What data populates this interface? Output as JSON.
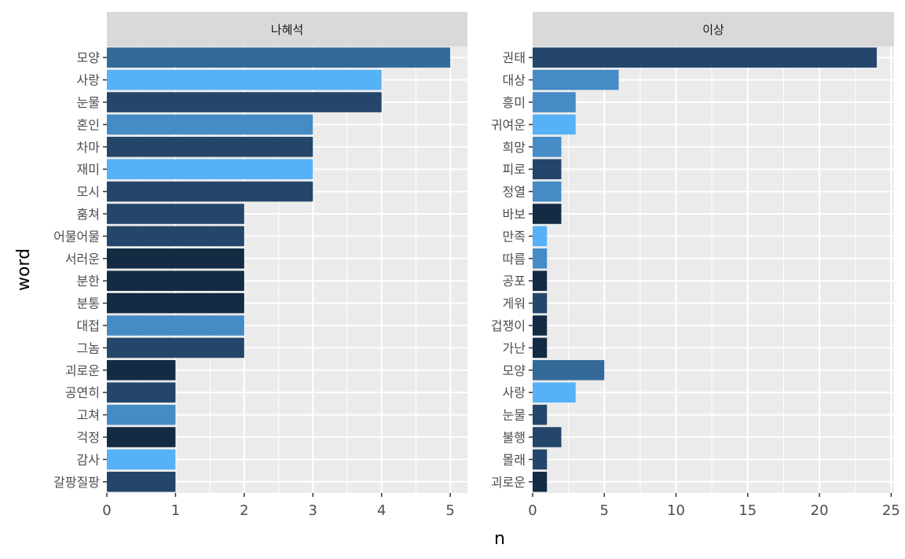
{
  "chart_data": {
    "type": "bar",
    "orientation": "horizontal",
    "xlabel": "n",
    "ylabel": "word",
    "grid": true,
    "panels": [
      {
        "title": "나혜석",
        "xlim": [
          0,
          5.25
        ],
        "xticks": [
          0,
          1,
          2,
          3,
          4,
          5
        ],
        "bars": [
          {
            "word": "모양",
            "n": 5,
            "color": "#336a98"
          },
          {
            "word": "사랑",
            "n": 4,
            "color": "#56b1f7"
          },
          {
            "word": "눈물",
            "n": 4,
            "color": "#23466a"
          },
          {
            "word": "혼인",
            "n": 3,
            "color": "#458bc6"
          },
          {
            "word": "차마",
            "n": 3,
            "color": "#23466a"
          },
          {
            "word": "재미",
            "n": 3,
            "color": "#56b1f7"
          },
          {
            "word": "모시",
            "n": 3,
            "color": "#23466a"
          },
          {
            "word": "훔쳐",
            "n": 2,
            "color": "#23466a"
          },
          {
            "word": "어물어물",
            "n": 2,
            "color": "#23466a"
          },
          {
            "word": "서러운",
            "n": 2,
            "color": "#132b43"
          },
          {
            "word": "분한",
            "n": 2,
            "color": "#132b43"
          },
          {
            "word": "분통",
            "n": 2,
            "color": "#132b43"
          },
          {
            "word": "대접",
            "n": 2,
            "color": "#458bc6"
          },
          {
            "word": "그놈",
            "n": 2,
            "color": "#23466a"
          },
          {
            "word": "괴로운",
            "n": 1,
            "color": "#132b43"
          },
          {
            "word": "공연히",
            "n": 1,
            "color": "#23466a"
          },
          {
            "word": "고쳐",
            "n": 1,
            "color": "#458bc6"
          },
          {
            "word": "걱정",
            "n": 1,
            "color": "#132b43"
          },
          {
            "word": "감사",
            "n": 1,
            "color": "#56b1f7"
          },
          {
            "word": "갈팡질팡",
            "n": 1,
            "color": "#23466a"
          }
        ]
      },
      {
        "title": "이상",
        "xlim": [
          0,
          25.2
        ],
        "xticks": [
          0,
          5,
          10,
          15,
          20,
          25
        ],
        "bars": [
          {
            "word": "권태",
            "n": 24,
            "color": "#23466a"
          },
          {
            "word": "대상",
            "n": 6,
            "color": "#458bc6"
          },
          {
            "word": "흥미",
            "n": 3,
            "color": "#458bc6"
          },
          {
            "word": "귀여운",
            "n": 3,
            "color": "#56b1f7"
          },
          {
            "word": "희망",
            "n": 2,
            "color": "#458bc6"
          },
          {
            "word": "피로",
            "n": 2,
            "color": "#23466a"
          },
          {
            "word": "정열",
            "n": 2,
            "color": "#458bc6"
          },
          {
            "word": "바보",
            "n": 2,
            "color": "#132b43"
          },
          {
            "word": "만족",
            "n": 1,
            "color": "#56b1f7"
          },
          {
            "word": "따름",
            "n": 1,
            "color": "#458bc6"
          },
          {
            "word": "공포",
            "n": 1,
            "color": "#132b43"
          },
          {
            "word": "게워",
            "n": 1,
            "color": "#23466a"
          },
          {
            "word": "겁쟁이",
            "n": 1,
            "color": "#132b43"
          },
          {
            "word": "가난",
            "n": 1,
            "color": "#132b43"
          },
          {
            "word": "모양",
            "n": 5,
            "color": "#336a98"
          },
          {
            "word": "사랑",
            "n": 3,
            "color": "#56b1f7"
          },
          {
            "word": "눈물",
            "n": 1,
            "color": "#23466a"
          },
          {
            "word": "불행",
            "n": 2,
            "color": "#23466a"
          },
          {
            "word": "몰래",
            "n": 1,
            "color": "#23466a"
          },
          {
            "word": "괴로운",
            "n": 1,
            "color": "#132b43"
          }
        ]
      }
    ]
  }
}
